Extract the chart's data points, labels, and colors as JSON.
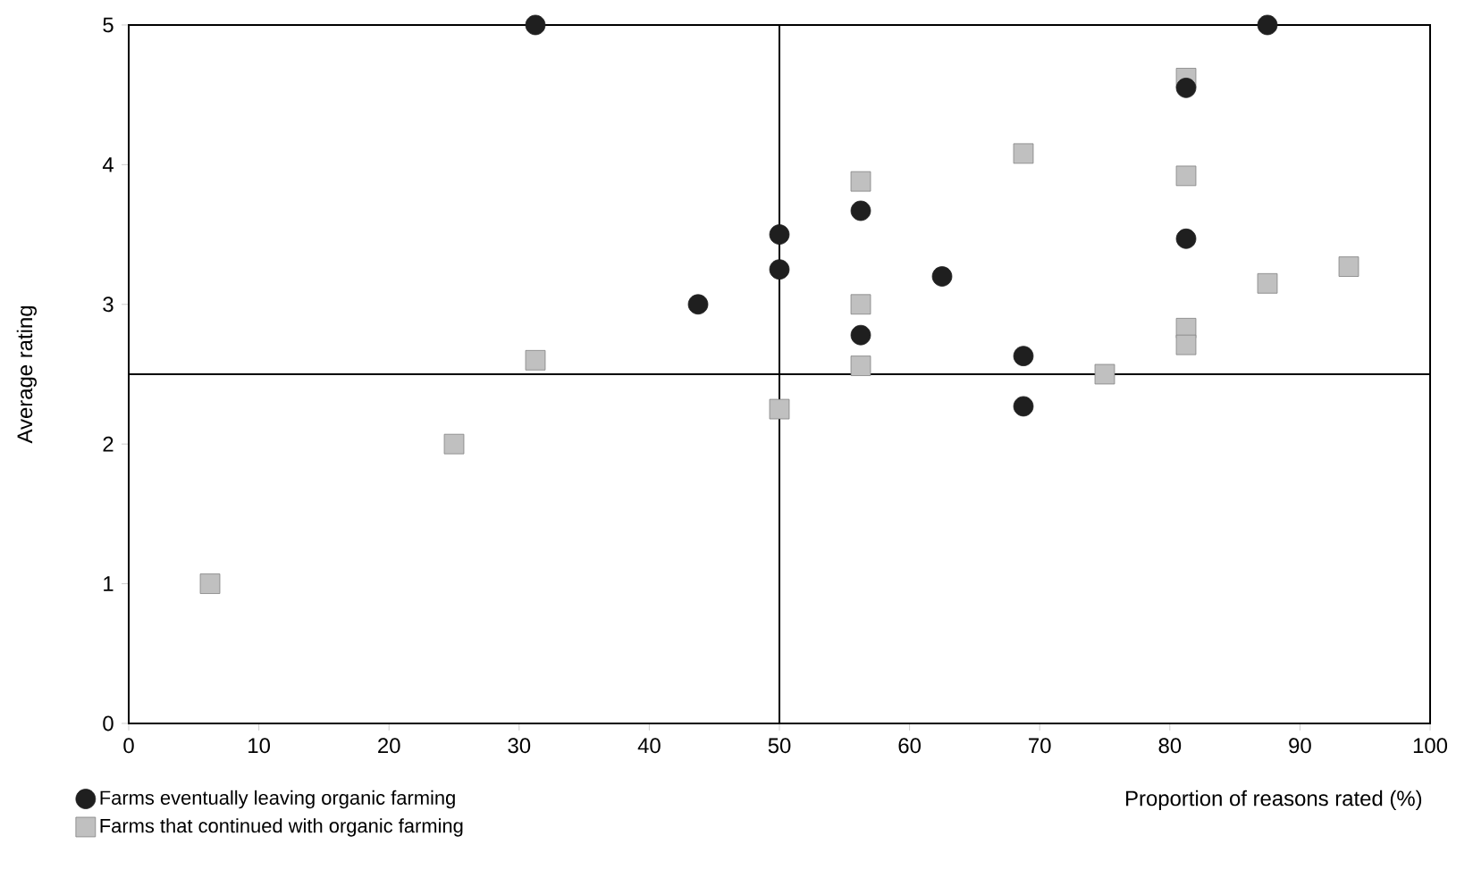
{
  "chart_data": {
    "type": "scatter",
    "xlabel": "Proportion of reasons rated (%)",
    "ylabel": "Average rating",
    "xlim": [
      0,
      100
    ],
    "ylim": [
      0,
      5
    ],
    "xticks": [
      0,
      10,
      20,
      30,
      40,
      50,
      60,
      70,
      80,
      90,
      100
    ],
    "yticks": [
      0,
      1,
      2,
      3,
      4,
      5
    ],
    "grid": false,
    "legend": "bottom left",
    "ref_lines": [
      {
        "axis": "x",
        "value": 50,
        "color": "#000000"
      },
      {
        "axis": "y",
        "value": 2.5,
        "color": "#000000"
      }
    ],
    "series": [
      {
        "name": "Farms eventually leaving organic farming",
        "color": "#1f1f1f",
        "marker": "circle",
        "x": [
          31.25,
          87.5,
          81.25,
          50,
          50,
          56.25,
          43.75,
          62.5,
          56.25,
          81.25,
          68.75,
          68.75
        ],
        "values": [
          5,
          5,
          4.55,
          3.5,
          3.25,
          3.67,
          3,
          3.2,
          2.78,
          3.47,
          2.63,
          2.27
        ]
      },
      {
        "name": "Farms that continued with organic farming",
        "color": "#c0c0c0",
        "marker": "square",
        "x": [
          6.25,
          25,
          31.25,
          50,
          56.25,
          56.25,
          56.25,
          68.75,
          75,
          81.25,
          81.25,
          81.25,
          81.25,
          87.5,
          93.75
        ],
        "values": [
          1,
          2,
          2.6,
          2.25,
          3.88,
          3.0,
          2.56,
          4.08,
          2.5,
          4.62,
          3.92,
          2.83,
          2.71,
          3.15,
          3.27
        ]
      }
    ]
  }
}
